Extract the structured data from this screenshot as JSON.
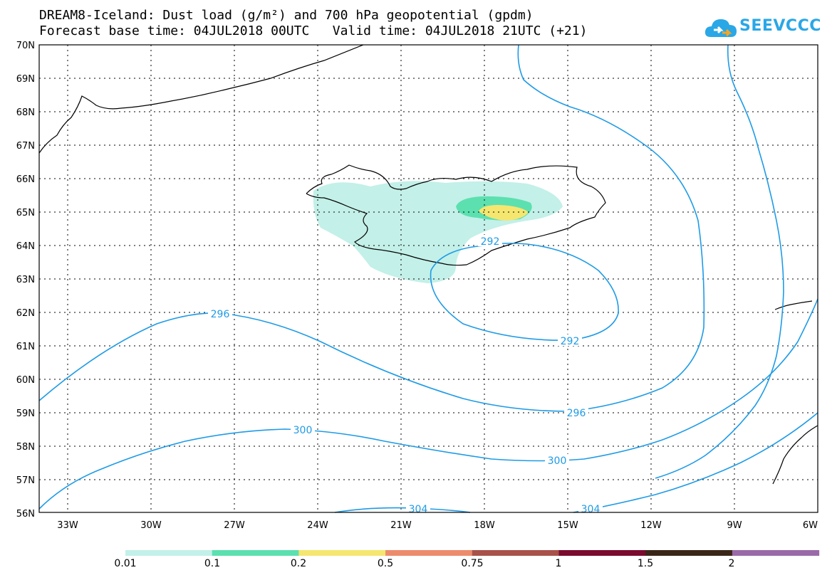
{
  "title": {
    "line1": "DREAM8-Iceland: Dust load (g/m²) and 700 hPa geopotential (gpdm)",
    "line2": "Forecast base time: 04JUL2018 00UTC   Valid time: 04JUL2018 21UTC (+21)"
  },
  "logo": {
    "text": "SEEVCCC",
    "icon": "cloud-logo-icon",
    "color": "#2aa7e6"
  },
  "map": {
    "lat_labels": [
      "70N",
      "69N",
      "68N",
      "67N",
      "66N",
      "65N",
      "64N",
      "63N",
      "62N",
      "61N",
      "60N",
      "59N",
      "58N",
      "57N",
      "56N"
    ],
    "lon_labels": [
      "33W",
      "30W",
      "27W",
      "24W",
      "21W",
      "18W",
      "15W",
      "12W",
      "9W",
      "6W"
    ],
    "contour_color": "#1e9be6",
    "contour_labels": [
      "292",
      "292",
      "296",
      "296",
      "300",
      "300",
      "304",
      "304"
    ]
  },
  "legend": {
    "colors": [
      "#c3f0e8",
      "#5ce0b0",
      "#f5e670",
      "#ec8c6c",
      "#a8524a",
      "#7a0a2e",
      "#3a2618",
      "#9a6aa8"
    ],
    "labels": [
      "0.01",
      "0.1",
      "0.2",
      "0.5",
      "0.75",
      "1",
      "1.5",
      "2"
    ]
  }
}
